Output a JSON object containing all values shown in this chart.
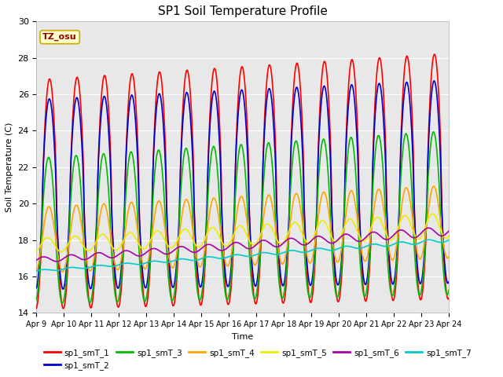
{
  "title": "SP1 Soil Temperature Profile",
  "xlabel": "Time",
  "ylabel": "Soil Temperature (C)",
  "ylim": [
    14,
    30
  ],
  "xlim": [
    0,
    15
  ],
  "xtick_labels": [
    "Apr 9",
    "Apr 10",
    "Apr 11",
    "Apr 12",
    "Apr 13",
    "Apr 14",
    "Apr 15",
    "Apr 16",
    "Apr 17",
    "Apr 18",
    "Apr 19",
    "Apr 20",
    "Apr 21",
    "Apr 22",
    "Apr 23",
    "Apr 24"
  ],
  "legend_labels": [
    "sp1_smT_1",
    "sp1_smT_2",
    "sp1_smT_3",
    "sp1_smT_4",
    "sp1_smT_5",
    "sp1_smT_6",
    "sp1_smT_7"
  ],
  "line_colors": [
    "#FF0000",
    "#0000CD",
    "#00BB00",
    "#FFA500",
    "#EEEE00",
    "#AA00AA",
    "#00CCCC"
  ],
  "line_widths": [
    1.2,
    1.2,
    1.2,
    1.2,
    1.2,
    1.2,
    1.2
  ],
  "bg_color": "#E8E8E8",
  "tz_label": "TZ_osu",
  "tz_bg": "#FFFFCC",
  "tz_border": "#CCAA00",
  "yticks": [
    14,
    16,
    18,
    20,
    22,
    24,
    26,
    28,
    30
  ],
  "figsize": [
    6.4,
    4.8
  ],
  "dpi": 100
}
